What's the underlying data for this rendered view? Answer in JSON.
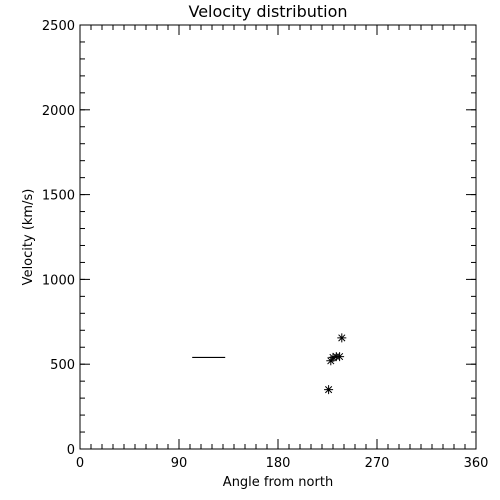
{
  "chart_data": {
    "type": "scatter",
    "title": "Velocity distribution",
    "xlabel": "Angle from north",
    "ylabel": "Velocity (km/s)",
    "xlim": [
      0,
      360
    ],
    "ylim": [
      0,
      2500
    ],
    "x_ticks": [
      0,
      90,
      180,
      270,
      360
    ],
    "x_tick_labels": [
      "0",
      "90",
      "180",
      "270",
      "360"
    ],
    "y_ticks": [
      0,
      500,
      1000,
      1500,
      2000,
      2500
    ],
    "y_tick_labels": [
      "0",
      "500",
      "1000",
      "1500",
      "2000",
      "2500"
    ],
    "x_minor_step": 10,
    "y_minor_step": 100,
    "grid": false,
    "series": [
      {
        "marker": "asterisk",
        "color": "#000000",
        "points": [
          {
            "x": 238,
            "y": 655
          },
          {
            "x": 230,
            "y": 540
          },
          {
            "x": 233,
            "y": 545
          },
          {
            "x": 236,
            "y": 545
          },
          {
            "x": 228,
            "y": 520
          },
          {
            "x": 226,
            "y": 350
          }
        ]
      }
    ],
    "segments": [
      {
        "x1": 102,
        "x2": 132,
        "y": 540,
        "color": "#000000"
      }
    ]
  }
}
